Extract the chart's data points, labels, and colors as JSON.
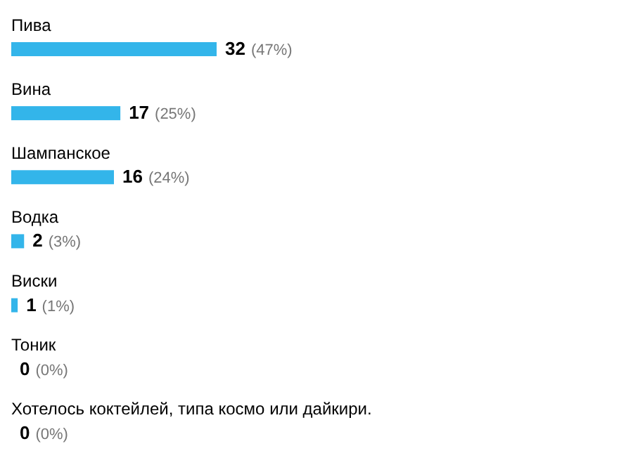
{
  "chart_data": {
    "type": "bar",
    "orientation": "horizontal",
    "categories": [
      "Пива",
      "Вина",
      "Шампанское",
      "Водка",
      "Виски",
      "Тоник",
      "Хотелось коктейлей, типа космо или дайкири."
    ],
    "values": [
      32,
      17,
      16,
      2,
      1,
      0,
      0
    ],
    "value_labels": [
      "32 (47%)",
      "17 (25%)",
      "16 (24%)",
      "2 (3%)",
      "1 (1%)",
      "0 (0%)",
      "0 (0%)"
    ],
    "color": "#33b5ea",
    "grid": false,
    "legend": false
  }
}
